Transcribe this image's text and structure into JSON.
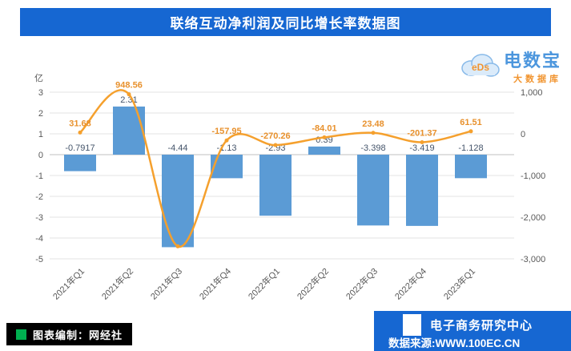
{
  "header": {
    "title": "联络互动净利润及同比增长率数据图"
  },
  "logo": {
    "cloud_text": "eDs",
    "name": "电数宝",
    "sub": "大数据库"
  },
  "footer": {
    "left": "图表编制：网经社",
    "right_top": "电子商务研究中心",
    "right_bottom": "数据来源:WWW.100EC.CN"
  },
  "brand": {
    "banner_blue": "#1667D2",
    "green_square": "#00B050"
  },
  "chart_data": {
    "type": "combo",
    "title": "联络互动净利润及同比增长率数据图",
    "categories": [
      "2021年Q1",
      "2021年Q2",
      "2021年Q3",
      "2021年Q4",
      "2022年Q1",
      "2022年Q2",
      "2022年Q3",
      "2022年Q4",
      "2023年Q1"
    ],
    "series": [
      {
        "name": "净利润",
        "type": "bar",
        "axis": "left",
        "values": [
          -0.7917,
          2.31,
          -4.44,
          -1.13,
          -2.93,
          0.39,
          -3.398,
          -3.419,
          -1.128
        ],
        "labels": [
          "-0.7917",
          "2.31",
          "-4.44",
          "-1.13",
          "-2.93",
          "0.39",
          "-3.398",
          "-3.419",
          "-1.128"
        ]
      },
      {
        "name": "同比增长率",
        "type": "line",
        "axis": "right",
        "values": [
          31.68,
          948.56,
          -2700,
          -157.95,
          -270.26,
          -84.01,
          23.48,
          -201.37,
          61.51
        ],
        "labels": [
          "31.68",
          "948.56",
          "",
          "-157.95",
          "-270.26",
          "-84.01",
          "23.48",
          "-201.37",
          "61.51"
        ]
      }
    ],
    "left_axis": {
      "unit": "亿",
      "ticks": [
        3,
        2,
        1,
        0,
        -1,
        -2,
        -3,
        -4,
        -5
      ],
      "min": -5,
      "max": 3
    },
    "right_axis": {
      "ticks": [
        1000,
        0,
        -1000,
        -2000,
        -3000
      ],
      "tick_labels": [
        "1,000",
        "0",
        "-1,000",
        "-2,000",
        "-3,000"
      ],
      "min": -3000,
      "max": 1000
    },
    "colors": {
      "bar": "#5B9BD5",
      "line": "#F5A02D",
      "bar_label": "#44546A",
      "line_label": "#E8912D",
      "grid": "#E3E3E3",
      "zero_line": "#C0C0C0",
      "axis_text": "#595959"
    },
    "legend": "none",
    "grid": true
  }
}
